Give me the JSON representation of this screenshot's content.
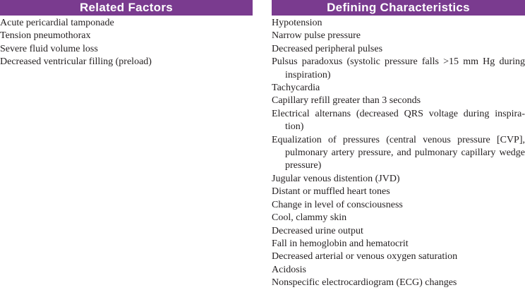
{
  "related_factors": {
    "header": "Related Factors",
    "items": [
      "Acute pericardial tamponade",
      "Tension pneumothorax",
      "Severe fluid volume loss",
      "Decreased ventricular filling (preload)"
    ]
  },
  "defining_characteristics": {
    "header": "Defining Characteristics",
    "items": [
      "Hypotension",
      "Narrow pulse pressure",
      "Decreased peripheral pulses",
      "Pulsus paradoxus (systolic pressure falls >15 mm Hg during inspiration)",
      "Tachycardia",
      "Capillary refill greater than 3 seconds",
      "Electrical alternans (decreased QRS voltage during inspira-tion)",
      "Equalization of pressures (central venous pressure [CVP], pulmonary artery pressure, and pulmonary capillary wedge pressure)",
      "Jugular venous distention (JVD)",
      "Distant or muffled heart tones",
      "Change in level of consciousness",
      "Cool, clammy skin",
      "Decreased urine output",
      "Fall in hemoglobin and hematocrit",
      "Decreased arterial or venous oxygen saturation",
      "Acidosis",
      "Nonspecific electrocardiogram (ECG) changes"
    ]
  },
  "colors": {
    "header_bg": "#7a3b8f",
    "header_text": "#ffffff",
    "body_text": "#231f20"
  }
}
